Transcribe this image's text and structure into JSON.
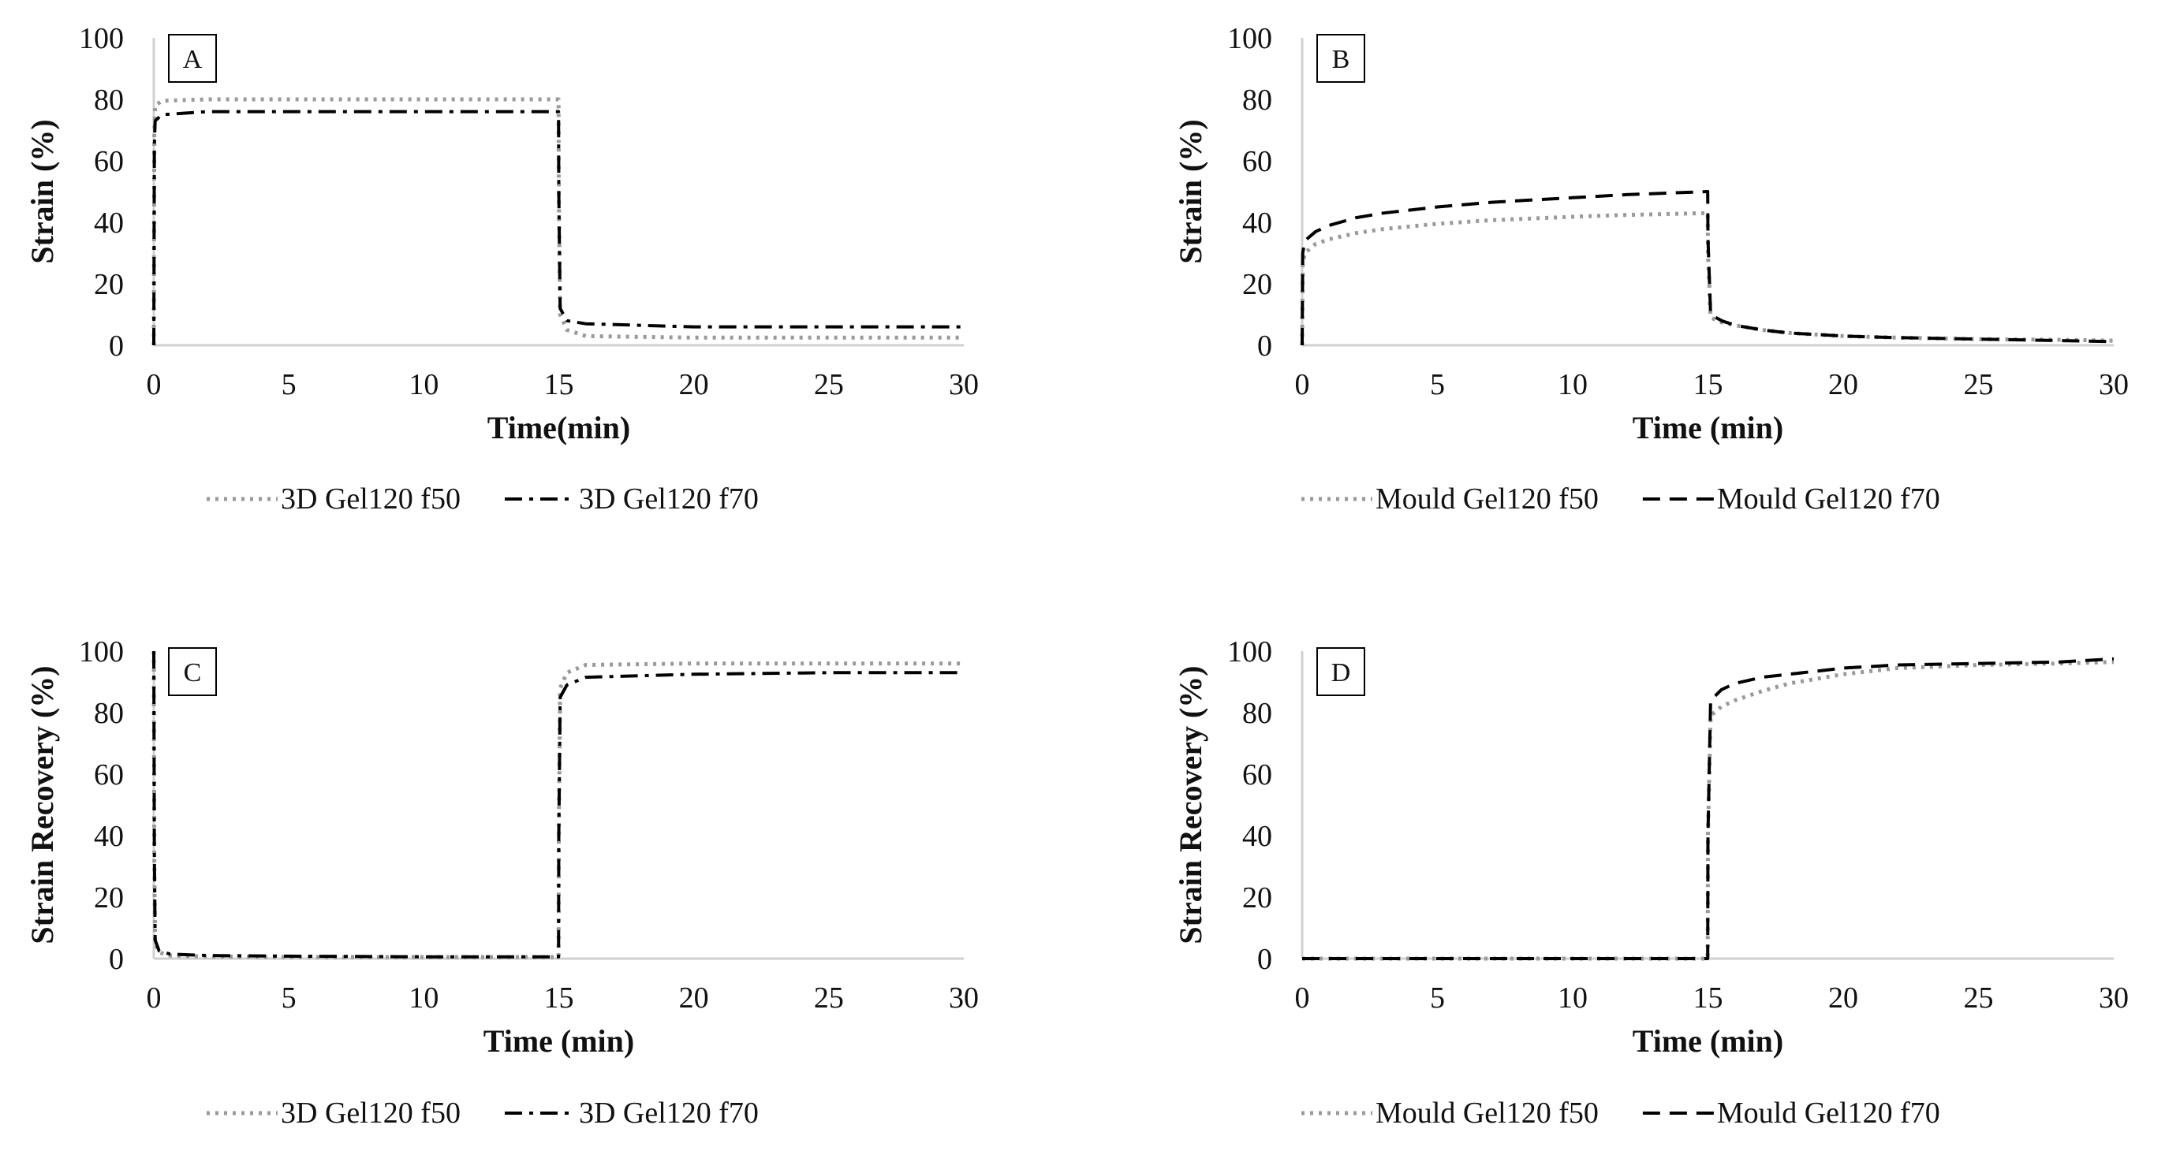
{
  "chart_data": [
    {
      "type": "line",
      "panel_label": "A",
      "xlabel": "Time(min)",
      "ylabel": "Strain (%)",
      "xlim": [
        0,
        30
      ],
      "ylim": [
        0,
        100
      ],
      "xticks": [
        0,
        5,
        10,
        15,
        20,
        25,
        30
      ],
      "yticks": [
        0,
        20,
        40,
        60,
        80,
        100
      ],
      "grid": false,
      "legend_position": "bottom",
      "series": [
        {
          "name": "3D Gel120 f50",
          "style": "dotted",
          "color": "#9a9a9a",
          "x": [
            0,
            0.02,
            0.05,
            0.3,
            2,
            5,
            10,
            14.99,
            15,
            15.05,
            15.3,
            16,
            20,
            25,
            30
          ],
          "y": [
            0,
            70,
            78,
            79.5,
            80,
            80,
            80,
            80,
            50,
            10,
            5,
            3,
            2.5,
            2.5,
            2.5
          ]
        },
        {
          "name": "3D Gel120 f70",
          "style": "dash-dot",
          "color": "#000000",
          "x": [
            0,
            0.02,
            0.05,
            0.3,
            2,
            5,
            10,
            14.99,
            15,
            15.05,
            15.3,
            16,
            20,
            25,
            30
          ],
          "y": [
            0,
            65,
            73,
            75,
            76,
            76,
            76,
            76,
            50,
            12,
            8,
            7,
            6,
            6,
            6
          ]
        }
      ]
    },
    {
      "type": "line",
      "panel_label": "B",
      "xlabel": "Time (min)",
      "ylabel": "Strain (%)",
      "xlim": [
        0,
        30
      ],
      "ylim": [
        0,
        100
      ],
      "xticks": [
        0,
        5,
        10,
        15,
        20,
        25,
        30
      ],
      "yticks": [
        0,
        20,
        40,
        60,
        80,
        100
      ],
      "grid": false,
      "legend_position": "bottom",
      "series": [
        {
          "name": "Mould Gel120 f50",
          "style": "dotted",
          "color": "#9a9a9a",
          "x": [
            0,
            0.02,
            0.1,
            0.5,
            1,
            2,
            3,
            5,
            7,
            10,
            12,
            14.99,
            15,
            15.1,
            15.5,
            16,
            17,
            18,
            20,
            22,
            25,
            28,
            30
          ],
          "y": [
            0,
            26,
            30,
            33,
            34.5,
            36.5,
            37.8,
            39.5,
            40.7,
            41.8,
            42.4,
            43,
            30,
            9,
            7.5,
            6.5,
            5,
            4,
            3,
            2.5,
            2,
            1.8,
            1.5
          ]
        },
        {
          "name": "Mould Gel120 f70",
          "style": "dash",
          "color": "#000000",
          "x": [
            0,
            0.02,
            0.1,
            0.5,
            1,
            2,
            3,
            5,
            7,
            10,
            12,
            14.99,
            15,
            15.1,
            15.5,
            16,
            17,
            18,
            20,
            22,
            25,
            28,
            30
          ],
          "y": [
            0,
            30,
            34,
            37,
            39,
            41.5,
            43,
            45,
            46.5,
            48,
            49,
            50,
            35,
            10,
            8,
            6.5,
            5,
            4,
            3,
            2.5,
            2,
            1.5,
            1.2
          ]
        }
      ]
    },
    {
      "type": "line",
      "panel_label": "C",
      "xlabel": "Time (min)",
      "ylabel": "Strain Recovery  (%)",
      "xlim": [
        0,
        30
      ],
      "ylim": [
        0,
        100
      ],
      "xticks": [
        0,
        5,
        10,
        15,
        20,
        25,
        30
      ],
      "yticks": [
        0,
        20,
        40,
        60,
        80,
        100
      ],
      "grid": false,
      "legend_position": "bottom",
      "series": [
        {
          "name": "3D Gel120 f50",
          "style": "dotted",
          "color": "#9a9a9a",
          "x": [
            0,
            0.02,
            0.05,
            0.2,
            0.6,
            2,
            5,
            10,
            14.99,
            15,
            15.05,
            15.3,
            16,
            20,
            25,
            30
          ],
          "y": [
            100,
            30,
            5,
            2,
            1,
            0.7,
            0.5,
            0.5,
            0.5,
            40,
            88,
            93,
            95.5,
            96,
            96,
            96
          ]
        },
        {
          "name": "3D Gel120 f70",
          "style": "dash-dot",
          "color": "#000000",
          "x": [
            0,
            0.02,
            0.05,
            0.2,
            0.6,
            2,
            5,
            10,
            14.99,
            15,
            15.05,
            15.3,
            16,
            20,
            25,
            30
          ],
          "y": [
            100,
            35,
            6,
            2.5,
            1.5,
            1,
            0.8,
            0.6,
            0.6,
            40,
            85,
            89,
            91.5,
            92.5,
            93,
            93
          ]
        }
      ]
    },
    {
      "type": "line",
      "panel_label": "D",
      "xlabel": "Time (min)",
      "ylabel": "Strain Recovery  (%)",
      "xlim": [
        0,
        30
      ],
      "ylim": [
        0,
        100
      ],
      "xticks": [
        0,
        5,
        10,
        15,
        20,
        25,
        30
      ],
      "yticks": [
        0,
        20,
        40,
        60,
        80,
        100
      ],
      "grid": false,
      "legend_position": "bottom",
      "series": [
        {
          "name": "Mould Gel120 f50",
          "style": "dotted",
          "color": "#9a9a9a",
          "x": [
            0,
            5,
            10,
            14.99,
            15,
            15.1,
            15.5,
            16,
            17,
            18,
            20,
            22,
            25,
            28,
            30
          ],
          "y": [
            0,
            0,
            0,
            0,
            40,
            79,
            82,
            84,
            87,
            89.5,
            92.5,
            94.5,
            95.5,
            96,
            96.5
          ]
        },
        {
          "name": "Mould Gel120 f70",
          "style": "dash",
          "color": "#000000",
          "x": [
            0,
            5,
            10,
            14.99,
            15,
            15.1,
            15.5,
            16,
            17,
            18,
            20,
            22,
            25,
            28,
            30
          ],
          "y": [
            0,
            0,
            0,
            0,
            40,
            84,
            87.5,
            89.5,
            91.5,
            92.5,
            94.5,
            95.5,
            96,
            96.5,
            97.5
          ]
        }
      ]
    }
  ]
}
